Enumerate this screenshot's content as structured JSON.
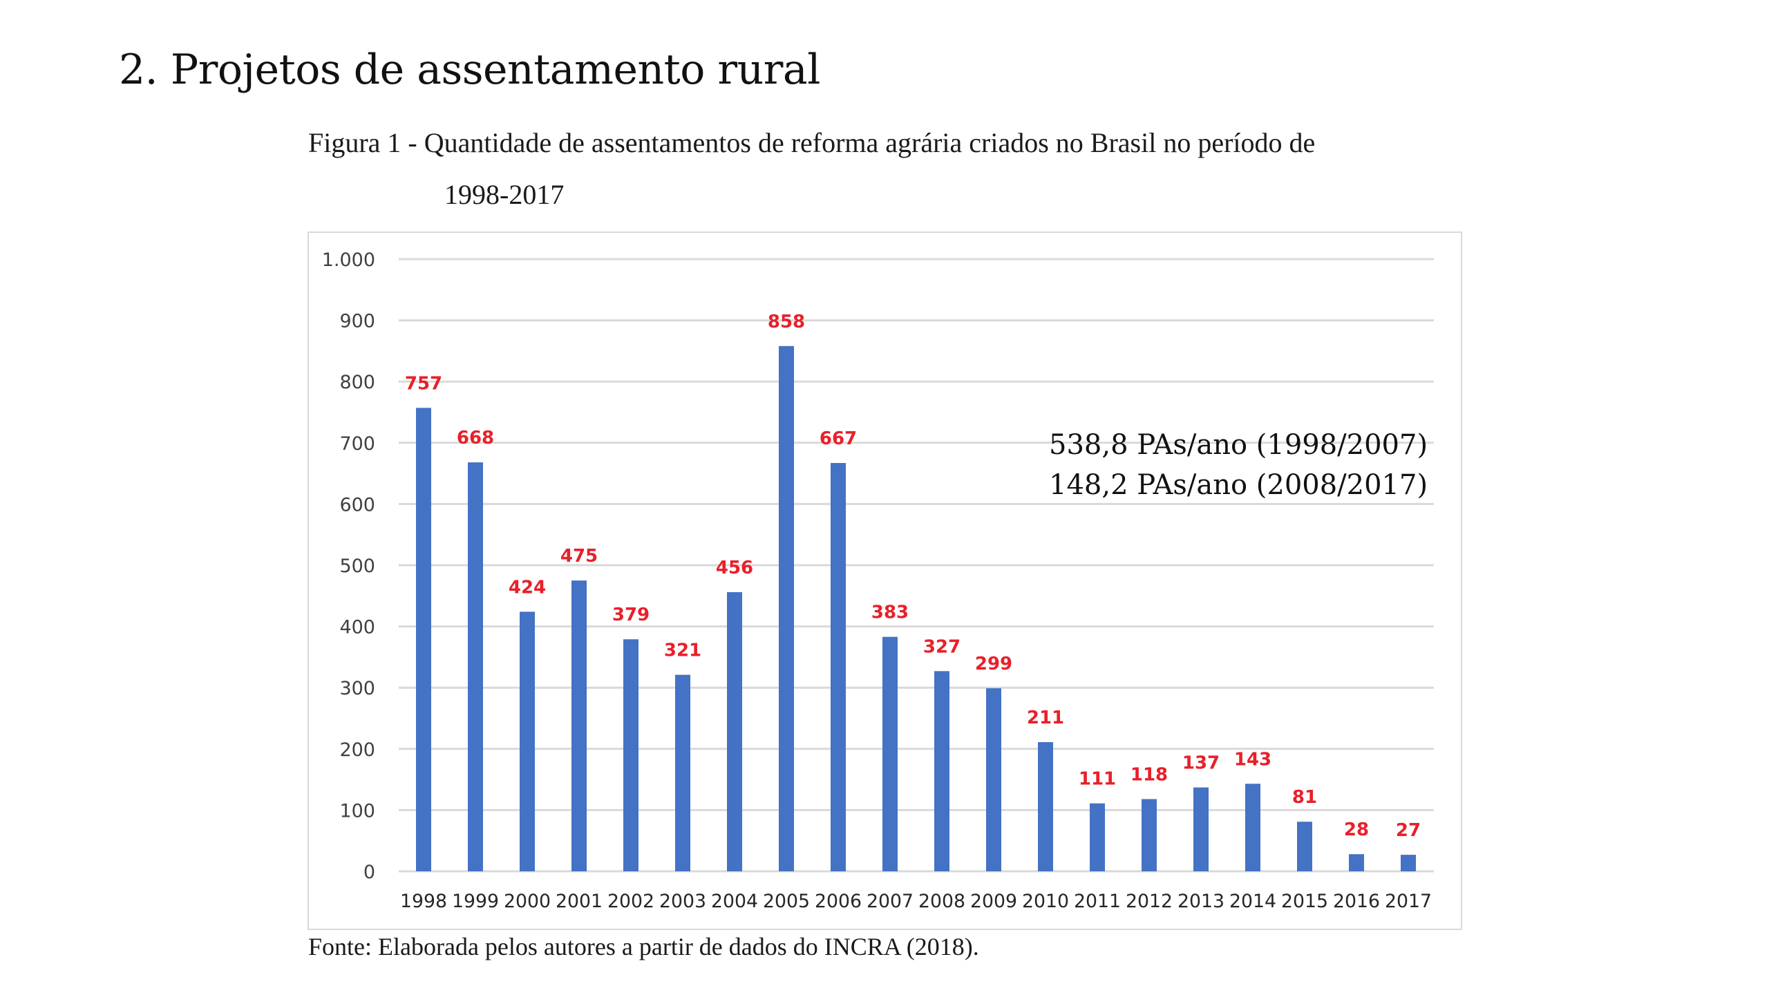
{
  "slide": {
    "heading": "2. Projetos de assentamento rural",
    "figure_caption_line1": "Figura 1 - Quantidade de assentamentos de reforma agrária criados no Brasil no período de",
    "figure_caption_line2": "1998-2017",
    "source": "Fonte: Elaborada pelos autores a partir de dados do INCRA (2018).",
    "annotations": [
      "538,8 PAs/ano (1998/2007)",
      "148,2 PAs/ano (2008/2017)"
    ]
  },
  "colors": {
    "bar": "#4472C4",
    "data_label": "#E8202A",
    "gridline": "#D9D9D9",
    "tick_label": "#404040"
  },
  "chart_data": {
    "type": "bar",
    "title": "Quantidade de assentamentos de reforma agrária criados no Brasil no período de 1998-2017",
    "xlabel": "",
    "ylabel": "",
    "categories": [
      "1998",
      "1999",
      "2000",
      "2001",
      "2002",
      "2003",
      "2004",
      "2005",
      "2006",
      "2007",
      "2008",
      "2009",
      "2010",
      "2011",
      "2012",
      "2013",
      "2014",
      "2015",
      "2016",
      "2017"
    ],
    "values": [
      757,
      668,
      424,
      475,
      379,
      321,
      456,
      858,
      667,
      383,
      327,
      299,
      211,
      111,
      118,
      137,
      143,
      81,
      28,
      27
    ],
    "data_labels": [
      "757",
      "668",
      "424",
      "475",
      "379",
      "321",
      "456",
      "858",
      "667",
      "383",
      "327",
      "299",
      "211",
      "111",
      "118",
      "137",
      "143",
      "81",
      "28",
      "27"
    ],
    "ylim": [
      0,
      1000
    ],
    "yticks": [
      0,
      100,
      200,
      300,
      400,
      500,
      600,
      700,
      800,
      900,
      1000
    ],
    "ytick_labels": [
      "0",
      "100",
      "200",
      "300",
      "400",
      "500",
      "600",
      "700",
      "800",
      "900",
      "1.000"
    ],
    "grid": true,
    "legend": "none"
  }
}
